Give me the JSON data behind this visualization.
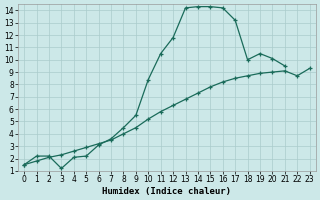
{
  "xlabel": "Humidex (Indice chaleur)",
  "xlim": [
    -0.5,
    23.5
  ],
  "ylim": [
    1,
    14.5
  ],
  "xticks": [
    0,
    1,
    2,
    3,
    4,
    5,
    6,
    7,
    8,
    9,
    10,
    11,
    12,
    13,
    14,
    15,
    16,
    17,
    18,
    19,
    20,
    21,
    22,
    23
  ],
  "yticks": [
    1,
    2,
    3,
    4,
    5,
    6,
    7,
    8,
    9,
    10,
    11,
    12,
    13,
    14
  ],
  "bg_color": "#cce8e8",
  "grid_color": "#aacccc",
  "line_color": "#1a6b5a",
  "line1_x": [
    0,
    1,
    2,
    3,
    4,
    5,
    6,
    7,
    8,
    9,
    10,
    11,
    12,
    13,
    14,
    15,
    16,
    17,
    18,
    19,
    20,
    21
  ],
  "line1_y": [
    1.5,
    2.2,
    2.2,
    1.2,
    2.1,
    2.2,
    3.1,
    3.6,
    4.5,
    5.5,
    8.4,
    10.5,
    11.8,
    14.2,
    14.3,
    14.3,
    14.2,
    13.2,
    10.0,
    10.5,
    10.1,
    9.5
  ],
  "line2_x": [
    0,
    1,
    2,
    3,
    4,
    5,
    6,
    7,
    8,
    9,
    10,
    11,
    12,
    13,
    14,
    15,
    16,
    17,
    18,
    19,
    20,
    21,
    22,
    23
  ],
  "line2_y": [
    1.5,
    1.8,
    2.1,
    2.3,
    2.6,
    2.9,
    3.2,
    3.5,
    4.0,
    4.5,
    5.2,
    5.8,
    6.3,
    6.8,
    7.3,
    7.8,
    8.2,
    8.5,
    8.7,
    8.9,
    9.0,
    9.1,
    8.7,
    9.3
  ],
  "tick_fontsize": 5.5,
  "xlabel_fontsize": 6.5
}
